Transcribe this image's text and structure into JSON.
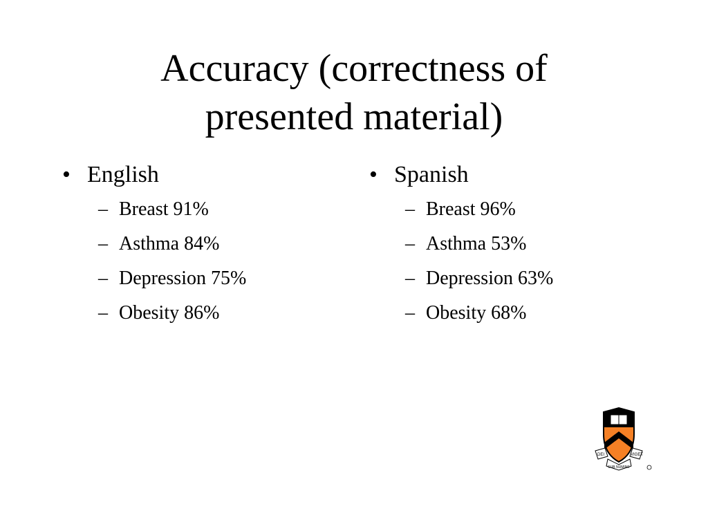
{
  "slide": {
    "title": {
      "lines": [
        "Accuracy (correctness of",
        "presented material)"
      ]
    },
    "columns": [
      {
        "heading": "English",
        "items": [
          "Breast 91%",
          "Asthma 84%",
          "Depression 75%",
          "Obesity 86%"
        ]
      },
      {
        "heading": "Spanish",
        "items": [
          "Breast 96%",
          "Asthma 53%",
          "Depression 63%",
          "Obesity 68%"
        ]
      }
    ],
    "logo": {
      "left": "DEI",
      "bottom": "SUB NUMINE",
      "right": "VIGET"
    }
  }
}
